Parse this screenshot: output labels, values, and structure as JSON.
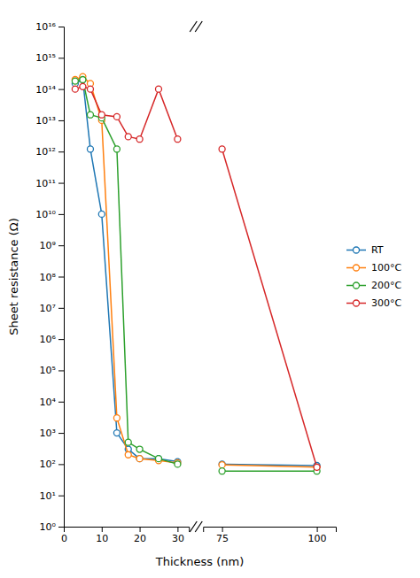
{
  "chart_data": {
    "type": "line",
    "x_label": "Thickness (nm)",
    "y_label": "Sheet resistance (Ω)",
    "x": [
      3,
      5,
      7,
      10,
      14,
      17,
      20,
      25,
      30,
      75,
      100
    ],
    "series": [
      {
        "name": "RT",
        "values": [
          150000000000000.0,
          200000000000000.0,
          1200000000000.0,
          10000000000.0,
          1000.0,
          300.0,
          150.0,
          150.0,
          120.0,
          100.0,
          90.0
        ]
      },
      {
        "name": "100°C",
        "values": [
          200000000000000.0,
          250000000000000.0,
          150000000000000.0,
          10000000000000.0,
          3000.0,
          200.0,
          150.0,
          130.0,
          110.0,
          95.0,
          80.0
        ]
      },
      {
        "name": "200°C",
        "values": [
          180000000000000.0,
          200000000000000.0,
          15000000000000.0,
          12000000000000.0,
          1200000000000.0,
          500.0,
          300.0,
          150.0,
          100.0,
          60.0,
          60.0
        ]
      },
      {
        "name": "300°C",
        "values": [
          100000000000000.0,
          120000000000000.0,
          100000000000000.0,
          15000000000000.0,
          13000000000000.0,
          3000000000000.0,
          2500000000000.0,
          100000000000000.0,
          2500000000000.0,
          1200000000000.0,
          80.0
        ]
      }
    ],
    "marker": "circle",
    "xlim": [
      [
        0,
        33
      ],
      [
        70,
        105
      ]
    ],
    "xticks": [
      0,
      10,
      20,
      30,
      75,
      100
    ],
    "ylim": [
      1,
      1e+16
    ],
    "log": "y",
    "yticks": [
      {
        "value": 1,
        "label": "10⁰"
      },
      {
        "value": 10,
        "label": "10¹"
      },
      {
        "value": 100,
        "label": "10²"
      },
      {
        "value": 1000,
        "label": "10³"
      },
      {
        "value": 10000,
        "label": "10⁴"
      },
      {
        "value": 100000,
        "label": "10⁵"
      },
      {
        "value": 1000000,
        "label": "10⁶"
      },
      {
        "value": 10000000,
        "label": "10⁷"
      },
      {
        "value": 100000000,
        "label": "10⁸"
      },
      {
        "value": 1000000000,
        "label": "10⁹"
      },
      {
        "value": 10000000000.0,
        "label": "10¹⁰"
      },
      {
        "value": 100000000000.0,
        "label": "10¹¹"
      },
      {
        "value": 1000000000000.0,
        "label": "10¹²"
      },
      {
        "value": 10000000000000.0,
        "label": "10¹³"
      },
      {
        "value": 100000000000000.0,
        "label": "10¹⁴"
      },
      {
        "value": 1000000000000000.0,
        "label": "10¹⁵"
      },
      {
        "value": 1e+16,
        "label": "10¹⁶"
      }
    ],
    "grid": false,
    "legend": "center right"
  }
}
